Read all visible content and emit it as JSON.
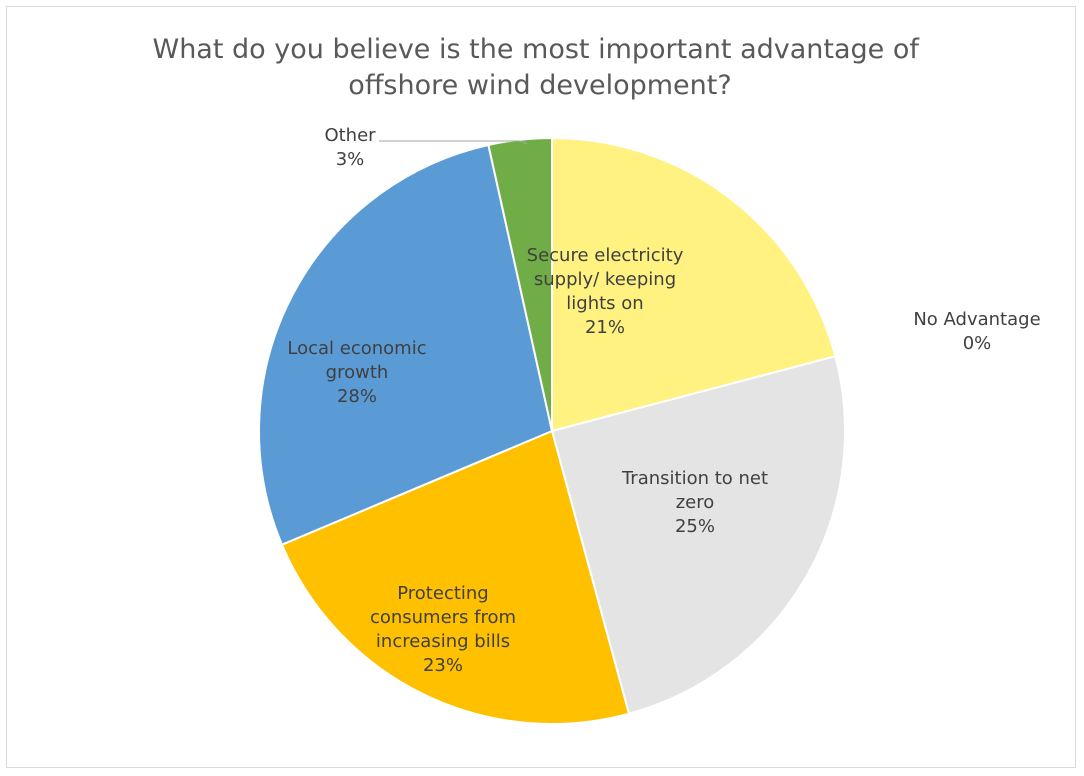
{
  "chart_data": {
    "type": "pie",
    "title_lines": [
      "What do you believe is the most important advantage of",
      "offshore wind development?"
    ],
    "slices": [
      {
        "name": "Secure electricity supply/ keeping lights on",
        "label_lines": [
          "Secure electricity",
          "supply/ keeping",
          "lights on"
        ],
        "percent": "21%",
        "value": 21,
        "color": "#fff280"
      },
      {
        "name": "Transition to net zero",
        "label_lines": [
          "Transition to net",
          "zero"
        ],
        "percent": "25%",
        "value": 25,
        "color": "#e4e4e4"
      },
      {
        "name": "Protecting consumers from increasing bills",
        "label_lines": [
          "Protecting",
          "consumers from",
          "increasing bills"
        ],
        "percent": "23%",
        "value": 23,
        "color": "#ffc000"
      },
      {
        "name": "Local economic growth",
        "label_lines": [
          "Local economic",
          "growth"
        ],
        "percent": "28%",
        "value": 28,
        "color": "#5b9bd5"
      },
      {
        "name": "Other",
        "label_lines": [
          "Other"
        ],
        "percent": "3%",
        "value": 3.5,
        "color": "#70ad47"
      },
      {
        "name": "No Advantage",
        "label_lines": [
          "No Advantage"
        ],
        "percent": "0%",
        "value": 0,
        "color": "#a5a5a5"
      }
    ]
  }
}
